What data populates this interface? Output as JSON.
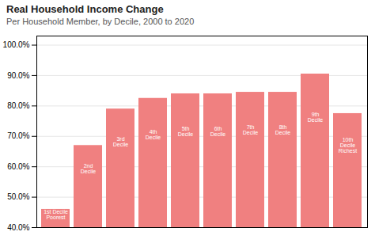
{
  "chart_data": {
    "type": "bar",
    "title": "Real Household Income Change",
    "subtitle": "Per Household Member, by Decile, 2000 to 2020",
    "categories": [
      "1st Decile\nPoorest",
      "2nd\nDecile",
      "3rd\nDecile",
      "4th\nDecile",
      "5th\nDecile",
      "6th\nDecile",
      "7th\nDecile",
      "8th\nDecile",
      "9th\nDecile",
      "10th\nDecile\nRichest"
    ],
    "values": [
      46.0,
      67.0,
      79.0,
      82.5,
      84.0,
      84.0,
      84.5,
      84.5,
      90.5,
      77.5
    ],
    "color": "#f08080",
    "ylim": [
      40.0,
      103.0
    ],
    "yticks": [
      {
        "value": 40.0,
        "label": "40.0%"
      },
      {
        "value": 50.0,
        "label": "50.0%"
      },
      {
        "value": 60.0,
        "label": "60.0%"
      },
      {
        "value": 70.0,
        "label": "70.0%"
      },
      {
        "value": 80.0,
        "label": "80.0%"
      },
      {
        "value": 90.0,
        "label": "90.0%"
      },
      {
        "value": 100.0,
        "label": "100.0%"
      }
    ],
    "grid": true,
    "tick_labels": "y"
  }
}
